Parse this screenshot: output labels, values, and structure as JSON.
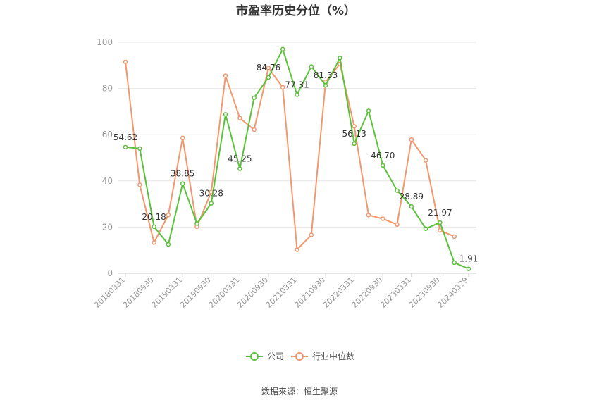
{
  "chart_data": {
    "type": "line",
    "title": "市盈率历史分位（%）",
    "ylim": [
      0,
      100
    ],
    "yticks": [
      0,
      20,
      40,
      60,
      80,
      100
    ],
    "grid": true,
    "legend_position": "bottom",
    "x_tick_labels": [
      "20180331",
      "20180930",
      "20190331",
      "20190930",
      "20200331",
      "20200930",
      "20210331",
      "20210930",
      "20220331",
      "20220930",
      "20230331",
      "20230930",
      "20240329"
    ],
    "x": [
      "20180331",
      "20180630",
      "20180930",
      "20181231",
      "20190331",
      "20190630",
      "20190930",
      "20191231",
      "20200331",
      "20200630",
      "20200930",
      "20201231",
      "20210331",
      "20210630",
      "20210930",
      "20211231",
      "20220331",
      "20220630",
      "20220930",
      "20221231",
      "20230331",
      "20230630",
      "20230930",
      "20231231",
      "20240329"
    ],
    "series": [
      {
        "name": "公司",
        "color": "#5ac23a",
        "values": [
          54.62,
          54.0,
          20.18,
          12.5,
          38.85,
          21.5,
          30.28,
          68.8,
          45.25,
          76.0,
          84.76,
          97.0,
          77.31,
          89.5,
          81.33,
          93.2,
          56.13,
          70.3,
          46.7,
          35.8,
          28.89,
          19.3,
          21.97,
          4.6,
          1.91
        ],
        "labels": [
          "54.62",
          "",
          "20.18",
          "",
          "38.85",
          "",
          "30.28",
          "",
          "45.25",
          "",
          "84.76",
          "",
          "77.31",
          "",
          "81.33",
          "",
          "56.13",
          "",
          "46.70",
          "",
          "28.89",
          "",
          "21.97",
          "",
          "1.91"
        ]
      },
      {
        "name": "行业中位数",
        "color": "#f4976c",
        "values": [
          91.5,
          38.3,
          13.3,
          25.3,
          58.6,
          20.2,
          35.2,
          85.5,
          67.2,
          62.2,
          88.9,
          80.5,
          10.2,
          16.6,
          82.9,
          90.6,
          63.6,
          25.2,
          23.6,
          21.1,
          57.9,
          48.9,
          18.6,
          15.9,
          null
        ]
      }
    ]
  },
  "footer": {
    "source": "数据来源：恒生聚源"
  }
}
